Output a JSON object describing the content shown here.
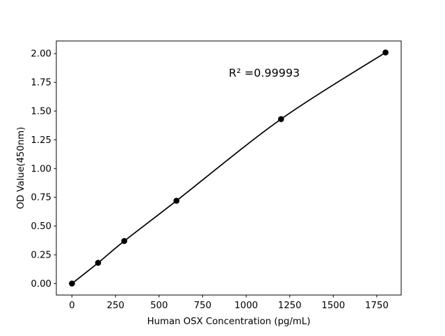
{
  "chart_data": {
    "type": "line",
    "x": [
      0,
      150,
      300,
      600,
      1200,
      1800
    ],
    "y": [
      0.0,
      0.18,
      0.37,
      0.72,
      1.43,
      2.01
    ],
    "title": "",
    "xlabel": "Human OSX Concentration (pg/mL)",
    "ylabel": "OD Value(450nm)",
    "xlim": [
      -90,
      1890
    ],
    "ylim": [
      -0.1,
      2.11
    ],
    "xticks": {
      "values": [
        0,
        250,
        500,
        750,
        1000,
        1250,
        1500,
        1750
      ],
      "labels": [
        "0",
        "250",
        "500",
        "750",
        "1000",
        "1250",
        "1500",
        "1750"
      ]
    },
    "yticks": {
      "values": [
        0.0,
        0.25,
        0.5,
        0.75,
        1.0,
        1.25,
        1.5,
        1.75,
        2.0
      ],
      "labels": [
        "0.00",
        "0.25",
        "0.50",
        "0.75",
        "1.00",
        "1.25",
        "1.50",
        "1.75",
        "2.00"
      ]
    },
    "grid": false,
    "legend": "none",
    "annotation": {
      "text": "R² =0.99993",
      "x": 900,
      "y": 1.8
    },
    "line_color": "#000000",
    "marker_color": "#000000",
    "marker": "filled-circle",
    "background": "#ffffff"
  }
}
